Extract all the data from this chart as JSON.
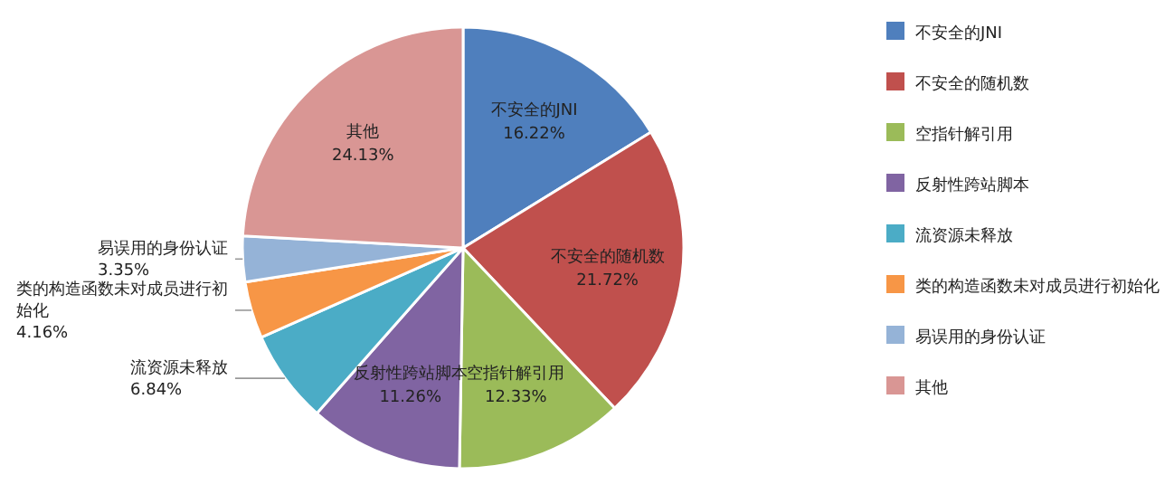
{
  "chart_data": {
    "type": "pie",
    "legend": "right",
    "categories": [
      "不安全的JNI",
      "不安全的随机数",
      "空指针解引用",
      "反射性跨站脚本",
      "流资源未释放",
      "类的构造函数未对成员进行初始化",
      "易误用的身份认证",
      "其他"
    ],
    "values": [
      16.22,
      21.72,
      12.33,
      11.26,
      6.84,
      4.16,
      3.35,
      24.13
    ],
    "value_labels": [
      "16.22%",
      "21.72%",
      "12.33%",
      "11.26%",
      "6.84%",
      "4.16%",
      "3.35%",
      "24.13%"
    ],
    "colors": [
      "#4f7fbd",
      "#c0504d",
      "#9bbb59",
      "#8064a2",
      "#4bacc6",
      "#f79646",
      "#95b3d7",
      "#d99694"
    ]
  }
}
